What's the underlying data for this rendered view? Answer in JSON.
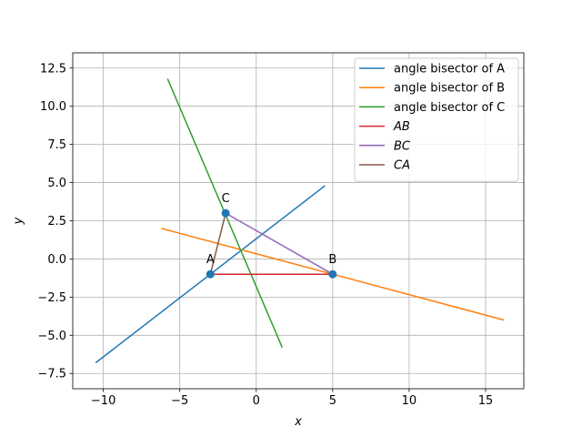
{
  "chart_data": {
    "type": "line",
    "xlabel": "x",
    "ylabel": "y",
    "xlim": [
      -12,
      17.5
    ],
    "ylim": [
      -8.5,
      13.5
    ],
    "xticks": [
      -10,
      -5,
      0,
      5,
      10,
      15
    ],
    "yticks": [
      -7.5,
      -5.0,
      -2.5,
      0.0,
      2.5,
      5.0,
      7.5,
      10.0,
      12.5
    ],
    "xtick_labels": [
      "−10",
      "−5",
      "0",
      "5",
      "10",
      "15"
    ],
    "ytick_labels": [
      "−7.5",
      "−5.0",
      "−2.5",
      "0.0",
      "2.5",
      "5.0",
      "7.5",
      "10.0",
      "12.5"
    ],
    "grid": true,
    "legend_position": "top-right",
    "series": [
      {
        "name": "angle bisector of A",
        "color": "#1f77b4",
        "x": [
          -10.5,
          4.5
        ],
        "y": [
          -6.8,
          4.8
        ]
      },
      {
        "name": "angle bisector of B",
        "color": "#ff7f0e",
        "x": [
          -6.2,
          16.2
        ],
        "y": [
          2.0,
          -4.0
        ]
      },
      {
        "name": "angle bisector of C",
        "color": "#2ca02c",
        "x": [
          -5.8,
          1.7
        ],
        "y": [
          11.8,
          -5.8
        ]
      },
      {
        "name": "AB",
        "color": "#d62728",
        "italic": true,
        "x": [
          -3,
          5
        ],
        "y": [
          -1,
          -1
        ]
      },
      {
        "name": "BC",
        "color": "#9467bd",
        "italic": true,
        "x": [
          5,
          -2
        ],
        "y": [
          -1,
          3
        ]
      },
      {
        "name": "CA",
        "color": "#8c564b",
        "italic": true,
        "x": [
          -2,
          -3
        ],
        "y": [
          3,
          -1
        ]
      }
    ],
    "points": [
      {
        "label": "A",
        "x": -3,
        "y": -1
      },
      {
        "label": "B",
        "x": 5,
        "y": -1
      },
      {
        "label": "C",
        "x": -2,
        "y": 3
      }
    ],
    "point_color": "#1f77b4"
  }
}
